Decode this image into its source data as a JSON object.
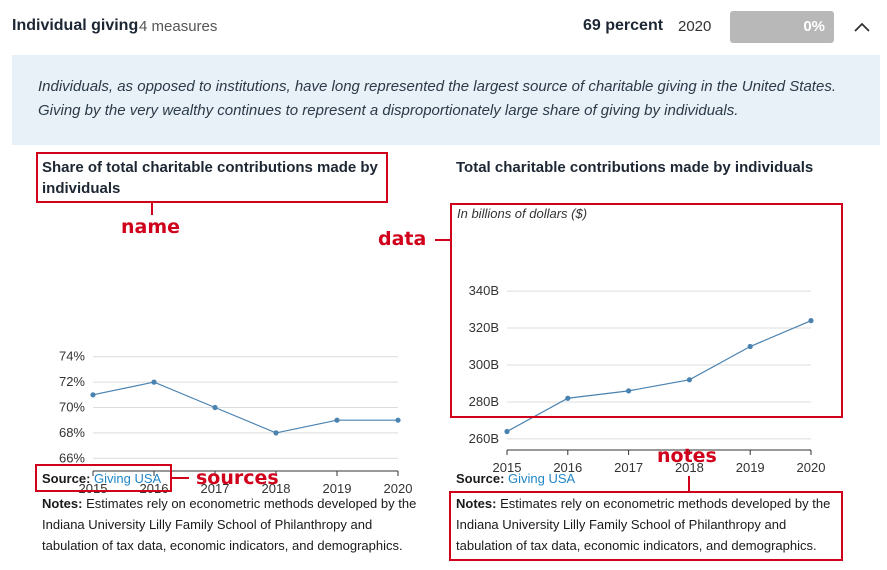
{
  "header": {
    "title": "Individual giving",
    "measures": "4 measures",
    "percent": "69 percent",
    "year": "2020",
    "progress_label": "0%",
    "progress_value": 0,
    "toggle_icon": "chevron-up-icon"
  },
  "description": "Individuals, as opposed to institutions, have long represented the largest source of charitable giving in the United States. Giving by the very wealthy continues to represent a disproportionately large share of giving by individuals.",
  "left": {
    "title": "Share of total charitable contributions made by individuals",
    "source_label": "Source:",
    "source_link": "Giving USA",
    "notes_label": "Notes:",
    "notes_text": "Estimates rely on econometric methods developed by the Indiana University Lilly Family School of Philanthropy and tabulation of tax data, economic indicators, and demographics."
  },
  "right": {
    "title": "Total charitable contributions made by individuals",
    "units": "In billions of dollars ($)",
    "source_label": "Source:",
    "source_link": "Giving USA",
    "notes_label": "Notes:",
    "notes_text": "Estimates rely on econometric methods developed by the Indiana University Lilly Family School of Philanthropy and tabulation of tax data, economic indicators, and demographics."
  },
  "annotations": {
    "name": "name",
    "data": "data",
    "sources": "sources",
    "notes": "notes"
  },
  "colors": {
    "accent": "#1f86c7",
    "line": "#4a82b0",
    "annotation": "#d0021b",
    "panel": "#e8f1f8"
  },
  "chart_data": [
    {
      "type": "line",
      "title": "Share of total charitable contributions made by individuals",
      "x": [
        2015,
        2016,
        2017,
        2018,
        2019,
        2020
      ],
      "values": [
        71,
        72,
        70,
        68,
        69,
        69
      ],
      "ylim": [
        65,
        75
      ],
      "yticks": [
        66,
        68,
        70,
        72,
        74
      ],
      "ytick_labels": [
        "66%",
        "68%",
        "70%",
        "72%",
        "74%"
      ],
      "grid": true
    },
    {
      "type": "line",
      "title": "Total charitable contributions made by individuals",
      "x": [
        2015,
        2016,
        2017,
        2018,
        2019,
        2020
      ],
      "values": [
        264,
        282,
        286,
        292,
        310,
        324
      ],
      "ylim": [
        254,
        346
      ],
      "yticks": [
        260,
        280,
        300,
        320,
        340
      ],
      "ytick_labels": [
        "260B",
        "280B",
        "300B",
        "320B",
        "340B"
      ],
      "grid": true
    }
  ]
}
